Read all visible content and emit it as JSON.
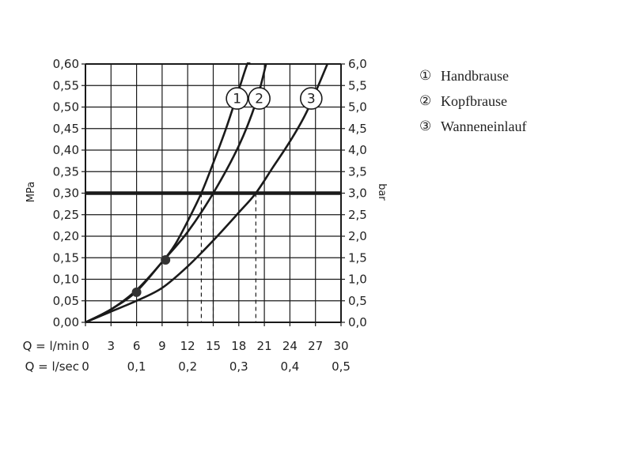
{
  "chart_data": {
    "type": "line",
    "x_axis_rows": [
      {
        "label": "Q = l/min",
        "ticks": [
          0,
          3,
          6,
          9,
          12,
          15,
          18,
          21,
          24,
          27,
          30
        ],
        "tick_labels": [
          "0",
          "3",
          "6",
          "9",
          "12",
          "15",
          "18",
          "21",
          "24",
          "27",
          "30"
        ]
      },
      {
        "label": "Q = l/sec",
        "ticks": [
          0,
          0.1,
          0.2,
          0.3,
          0.4,
          0.5
        ],
        "tick_labels": [
          "0",
          "0,1",
          "0,2",
          "0,3",
          "0,4",
          "0,5"
        ]
      }
    ],
    "xlim": [
      0,
      30
    ],
    "ylabel_left": "MPa",
    "ylabel_right": "bar",
    "ylim": [
      0,
      0.6
    ],
    "y_ticks_left": [
      "0,00",
      "0,05",
      "0,10",
      "0,15",
      "0,20",
      "0,25",
      "0,30",
      "0,35",
      "0,40",
      "0,45",
      "0,50",
      "0,55",
      "0,60"
    ],
    "y_ticks_right": [
      "0,0",
      "0,5",
      "1,0",
      "1,5",
      "2,0",
      "2,5",
      "3,0",
      "3,5",
      "4,0",
      "4,5",
      "5,0",
      "5,5",
      "6,0"
    ],
    "grid": true,
    "reference_line": {
      "y": 0.3
    },
    "drop_lines_x": [
      13.6,
      15.0,
      20.0
    ],
    "markers": [
      {
        "x": 6,
        "y": 0.07
      },
      {
        "x": 9.4,
        "y": 0.145
      }
    ],
    "series": [
      {
        "id": "1",
        "name": "Handbrause",
        "x": [
          0,
          3,
          6,
          9,
          10.5,
          12,
          13.6,
          15,
          16.5,
          18,
          19,
          19.3
        ],
        "y": [
          0,
          0.03,
          0.075,
          0.14,
          0.18,
          0.235,
          0.3,
          0.37,
          0.45,
          0.54,
          0.6,
          0.6
        ]
      },
      {
        "id": "2",
        "name": "Kopfbrause",
        "x": [
          0,
          3,
          6,
          9,
          12,
          15,
          18,
          20,
          21.2
        ],
        "y": [
          0,
          0.03,
          0.072,
          0.14,
          0.21,
          0.3,
          0.41,
          0.51,
          0.6
        ]
      },
      {
        "id": "3",
        "name": "Wanneneinlauf",
        "x": [
          0,
          3,
          6,
          9,
          12,
          15,
          18,
          20,
          22,
          24,
          26,
          28.4
        ],
        "y": [
          0,
          0.025,
          0.05,
          0.08,
          0.13,
          0.19,
          0.255,
          0.3,
          0.36,
          0.42,
          0.49,
          0.6
        ]
      }
    ],
    "curve_labels": [
      {
        "id": "1",
        "x": 17.8,
        "y": 0.52
      },
      {
        "id": "2",
        "x": 20.4,
        "y": 0.52
      },
      {
        "id": "3",
        "x": 26.5,
        "y": 0.52
      }
    ]
  },
  "legend": [
    {
      "marker": "①",
      "label": "Handbrause"
    },
    {
      "marker": "②",
      "label": "Kopfbrause"
    },
    {
      "marker": "③",
      "label": "Wanneneinlauf"
    }
  ]
}
